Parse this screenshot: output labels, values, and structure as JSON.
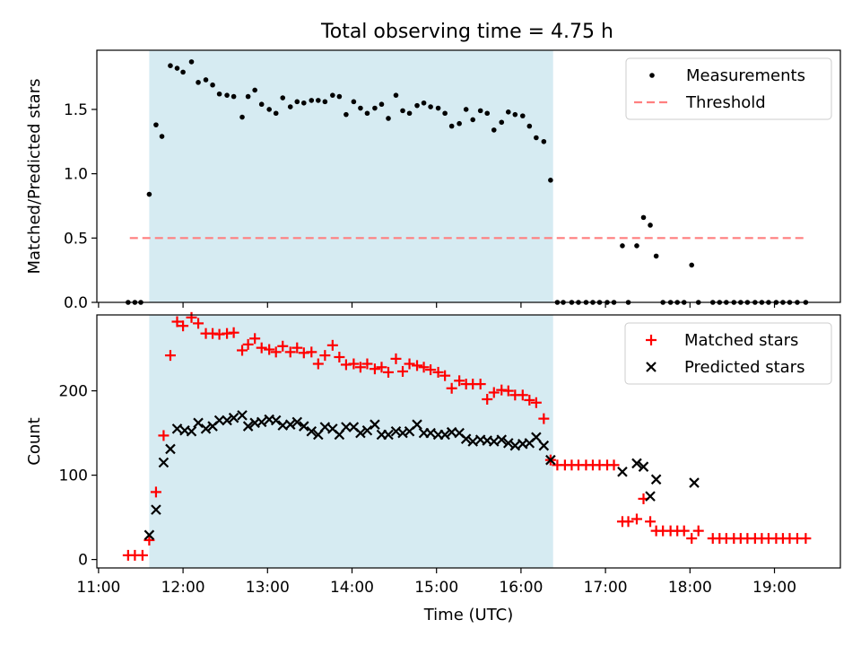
{
  "title": "Total observing time = 4.75 h",
  "chart_data": [
    {
      "type": "scatter",
      "ylabel": "Matched/Predicted stars",
      "xlim": [
        10.98,
        19.78
      ],
      "ylim": [
        0.0,
        1.96
      ],
      "yticks": [
        0.0,
        0.5,
        1.0,
        1.5
      ],
      "ytick_labels": [
        "0.0",
        "0.5",
        "1.0",
        "1.5"
      ],
      "highlight_span": [
        11.6,
        16.38
      ],
      "threshold": {
        "name": "Threshold",
        "value": 0.5,
        "x_range": [
          11.37,
          19.38
        ],
        "color": "#ff7f7f"
      },
      "legend_loc": "upper right",
      "series": [
        {
          "name": "Measurements",
          "color": "#000000",
          "x": [
            11.35,
            11.43,
            11.5,
            11.6,
            11.68,
            11.75,
            11.85,
            11.93,
            12.0,
            12.1,
            12.18,
            12.27,
            12.35,
            12.43,
            12.52,
            12.6,
            12.7,
            12.77,
            12.85,
            12.93,
            13.02,
            13.1,
            13.18,
            13.27,
            13.35,
            13.43,
            13.52,
            13.6,
            13.68,
            13.77,
            13.85,
            13.93,
            14.02,
            14.1,
            14.18,
            14.27,
            14.35,
            14.43,
            14.52,
            14.6,
            14.68,
            14.77,
            14.85,
            14.93,
            15.02,
            15.1,
            15.18,
            15.27,
            15.35,
            15.43,
            15.52,
            15.6,
            15.68,
            15.77,
            15.85,
            15.93,
            16.02,
            16.1,
            16.18,
            16.27,
            16.35,
            16.43,
            16.5,
            16.6,
            16.68,
            16.77,
            16.85,
            16.93,
            17.02,
            17.1,
            17.2,
            17.27,
            17.37,
            17.45,
            17.53,
            17.6,
            17.68,
            17.77,
            17.85,
            17.93,
            18.02,
            18.1,
            18.27,
            18.35,
            18.43,
            18.52,
            18.6,
            18.68,
            18.77,
            18.85,
            18.93,
            19.02,
            19.1,
            19.18,
            19.27,
            19.37
          ],
          "y": [
            0.0,
            0.0,
            0.0,
            0.84,
            1.38,
            1.29,
            1.84,
            1.82,
            1.79,
            1.87,
            1.71,
            1.73,
            1.69,
            1.62,
            1.61,
            1.6,
            1.44,
            1.6,
            1.65,
            1.54,
            1.5,
            1.47,
            1.59,
            1.52,
            1.56,
            1.55,
            1.57,
            1.57,
            1.56,
            1.61,
            1.6,
            1.46,
            1.56,
            1.51,
            1.47,
            1.51,
            1.54,
            1.43,
            1.61,
            1.49,
            1.47,
            1.53,
            1.55,
            1.52,
            1.51,
            1.47,
            1.37,
            1.39,
            1.5,
            1.42,
            1.49,
            1.47,
            1.34,
            1.4,
            1.48,
            1.46,
            1.45,
            1.37,
            1.28,
            1.25,
            0.95,
            0.0,
            0.0,
            0.0,
            0.0,
            0.0,
            0.0,
            0.0,
            0.0,
            0.0,
            0.44,
            0.0,
            0.44,
            0.66,
            0.6,
            0.36,
            0.0,
            0.0,
            0.0,
            0.0,
            0.29,
            0.0,
            0.0,
            0.0,
            0.0,
            0.0,
            0.0,
            0.0,
            0.0,
            0.0,
            0.0,
            0.0,
            0.0,
            0.0,
            0.0,
            0.0
          ]
        }
      ]
    },
    {
      "type": "scatter",
      "ylabel": "Count",
      "xlabel": "Time (UTC)",
      "xlim": [
        10.98,
        19.78
      ],
      "ylim": [
        -10,
        290
      ],
      "yticks": [
        0,
        100,
        200
      ],
      "ytick_labels": [
        "0",
        "100",
        "200"
      ],
      "xticks": [
        11,
        12,
        13,
        14,
        15,
        16,
        17,
        18,
        19
      ],
      "xtick_labels": [
        "11:00",
        "12:00",
        "13:00",
        "14:00",
        "15:00",
        "16:00",
        "17:00",
        "18:00",
        "19:00"
      ],
      "highlight_span": [
        11.6,
        16.38
      ],
      "legend_loc": "upper right",
      "series": [
        {
          "name": "Matched stars",
          "marker": "plus",
          "color": "#ff0000",
          "x": [
            11.35,
            11.43,
            11.52,
            11.6,
            11.68,
            11.77,
            11.85,
            11.93,
            12.0,
            12.1,
            12.18,
            12.27,
            12.35,
            12.43,
            12.52,
            12.6,
            12.7,
            12.77,
            12.85,
            12.93,
            13.02,
            13.1,
            13.18,
            13.27,
            13.35,
            13.43,
            13.52,
            13.6,
            13.68,
            13.77,
            13.85,
            13.93,
            14.02,
            14.1,
            14.18,
            14.27,
            14.35,
            14.43,
            14.52,
            14.6,
            14.68,
            14.77,
            14.85,
            14.93,
            15.02,
            15.1,
            15.18,
            15.27,
            15.35,
            15.43,
            15.52,
            15.6,
            15.68,
            15.77,
            15.85,
            15.93,
            16.02,
            16.1,
            16.18,
            16.27,
            16.35,
            16.43,
            16.52,
            16.6,
            16.68,
            16.77,
            16.85,
            16.93,
            17.02,
            17.1,
            17.2,
            17.27,
            17.37,
            17.45,
            17.53,
            17.6,
            17.68,
            17.77,
            17.85,
            17.93,
            18.02,
            18.1,
            18.27,
            18.35,
            18.43,
            18.52,
            18.6,
            18.68,
            18.77,
            18.85,
            18.93,
            19.02,
            19.1,
            19.18,
            19.27,
            19.37
          ],
          "y": [
            5,
            5,
            5,
            23,
            80,
            147,
            242,
            282,
            277,
            287,
            280,
            268,
            268,
            267,
            268,
            269,
            248,
            255,
            262,
            251,
            249,
            246,
            253,
            246,
            251,
            245,
            246,
            232,
            242,
            254,
            240,
            231,
            232,
            228,
            232,
            226,
            228,
            222,
            238,
            223,
            232,
            230,
            228,
            225,
            222,
            218,
            203,
            212,
            208,
            208,
            208,
            190,
            198,
            201,
            200,
            195,
            195,
            189,
            186,
            167,
            118,
            112,
            112,
            112,
            112,
            112,
            112,
            112,
            112,
            112,
            45,
            45,
            48,
            72,
            45,
            34,
            34,
            34,
            34,
            34,
            25,
            34,
            25,
            25,
            25,
            25,
            25,
            25,
            25,
            25,
            25,
            25,
            25,
            25,
            25,
            25
          ]
        },
        {
          "name": "Predicted stars",
          "marker": "x",
          "color": "#000000",
          "x": [
            11.6,
            11.68,
            11.77,
            11.85,
            11.93,
            12.02,
            12.1,
            12.18,
            12.27,
            12.35,
            12.43,
            12.52,
            12.6,
            12.7,
            12.77,
            12.85,
            12.93,
            13.02,
            13.1,
            13.18,
            13.27,
            13.35,
            13.43,
            13.52,
            13.6,
            13.68,
            13.77,
            13.85,
            13.93,
            14.02,
            14.1,
            14.18,
            14.27,
            14.35,
            14.43,
            14.52,
            14.6,
            14.68,
            14.77,
            14.85,
            14.93,
            15.02,
            15.1,
            15.18,
            15.27,
            15.35,
            15.43,
            15.52,
            15.6,
            15.68,
            15.77,
            15.85,
            15.93,
            16.02,
            16.1,
            16.18,
            16.27,
            16.35,
            17.2,
            17.37,
            17.45,
            17.53,
            17.6,
            18.05
          ],
          "y": [
            29,
            59,
            115,
            131,
            155,
            153,
            152,
            162,
            155,
            158,
            165,
            165,
            168,
            171,
            158,
            162,
            163,
            166,
            165,
            159,
            160,
            163,
            158,
            152,
            148,
            157,
            155,
            148,
            157,
            157,
            150,
            153,
            160,
            148,
            148,
            152,
            150,
            152,
            160,
            150,
            150,
            148,
            148,
            151,
            150,
            143,
            140,
            142,
            141,
            140,
            142,
            138,
            135,
            137,
            138,
            145,
            135,
            118,
            104,
            114,
            110,
            75,
            95,
            91
          ]
        }
      ]
    }
  ]
}
